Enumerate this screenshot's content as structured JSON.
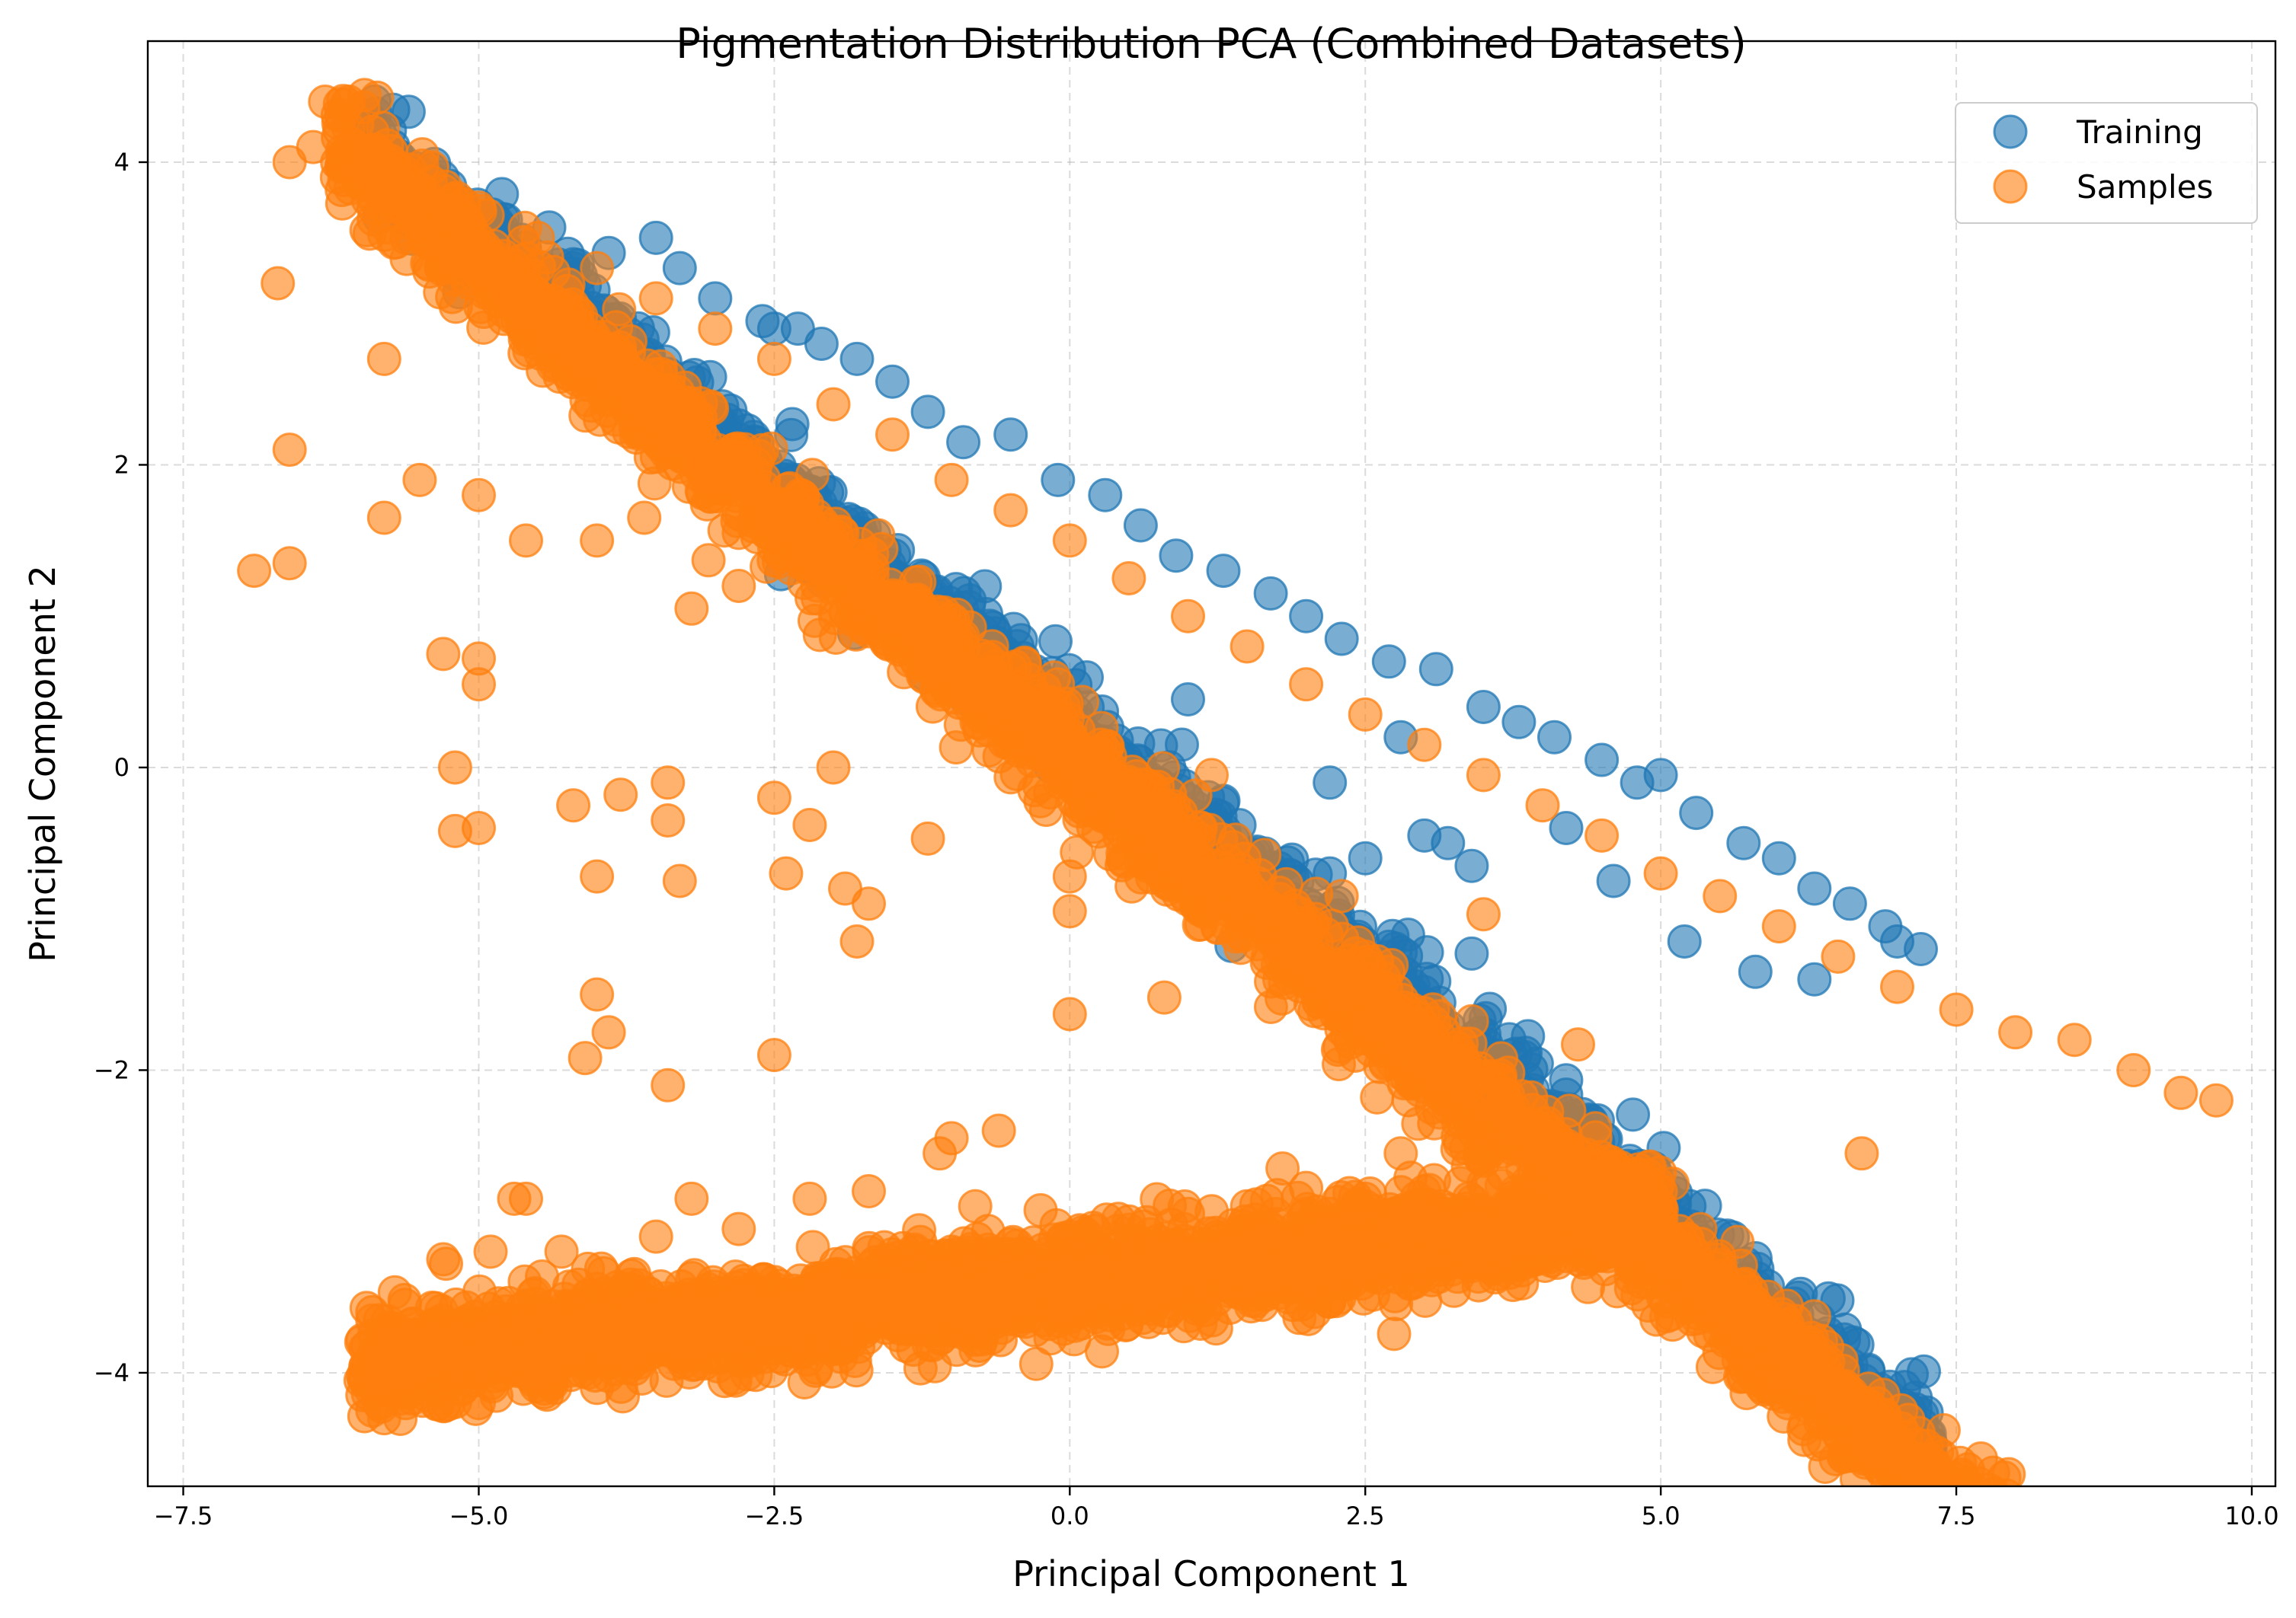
{
  "chart_data": {
    "type": "scatter",
    "title": "Pigmentation Distribution PCA (Combined Datasets)",
    "xlabel": "Principal Component 1",
    "ylabel": "Principal Component 2",
    "xlim": [
      -7.8,
      10.2
    ],
    "ylim": [
      -4.75,
      4.8
    ],
    "xticks": [
      -7.5,
      -5.0,
      -2.5,
      0.0,
      2.5,
      5.0,
      7.5,
      10.0
    ],
    "xtick_labels": [
      "−7.5",
      "−5.0",
      "−2.5",
      "0.0",
      "2.5",
      "5.0",
      "7.5",
      "10.0"
    ],
    "yticks": [
      -4,
      -2,
      0,
      2,
      4
    ],
    "ytick_labels": [
      "−4",
      "−2",
      "0",
      "2",
      "4"
    ],
    "grid": true,
    "legend_position": "top-right",
    "series": [
      {
        "name": "Training",
        "color": "#1f77b4",
        "opacity": 0.6,
        "points": [
          [
            -3.5,
            3.5
          ],
          [
            -3.3,
            3.3
          ],
          [
            -3.0,
            3.1
          ],
          [
            -2.6,
            2.95
          ],
          [
            -2.5,
            2.9
          ],
          [
            -2.3,
            2.9
          ],
          [
            -2.1,
            2.8
          ],
          [
            -1.8,
            2.7
          ],
          [
            -1.5,
            2.55
          ],
          [
            -1.2,
            2.35
          ],
          [
            -0.9,
            2.15
          ],
          [
            -0.5,
            2.2
          ],
          [
            -0.1,
            1.9
          ],
          [
            0.3,
            1.8
          ],
          [
            0.6,
            1.6
          ],
          [
            0.9,
            1.4
          ],
          [
            1.3,
            1.3
          ],
          [
            1.7,
            1.15
          ],
          [
            2.0,
            1.0
          ],
          [
            2.3,
            0.85
          ],
          [
            2.7,
            0.7
          ],
          [
            3.1,
            0.65
          ],
          [
            3.5,
            0.4
          ],
          [
            3.8,
            0.3
          ],
          [
            4.1,
            0.2
          ],
          [
            4.5,
            0.05
          ],
          [
            4.8,
            -0.1
          ],
          [
            5.0,
            -0.05
          ],
          [
            5.3,
            -0.3
          ],
          [
            5.7,
            -0.5
          ],
          [
            6.0,
            -0.6
          ],
          [
            6.3,
            -0.8
          ],
          [
            6.6,
            -0.9
          ],
          [
            6.9,
            -1.05
          ],
          [
            7.2,
            -1.2
          ],
          [
            -3.9,
            3.4
          ],
          [
            -4.2,
            3.3
          ],
          [
            -2.8,
            1.95
          ],
          [
            -0.8,
            0.8
          ],
          [
            1.0,
            0.45
          ],
          [
            1.3,
            -0.22
          ],
          [
            1.7,
            -0.8
          ],
          [
            2.2,
            -0.1
          ],
          [
            2.2,
            -0.7
          ],
          [
            2.5,
            -0.6
          ],
          [
            3.0,
            -0.45
          ],
          [
            3.4,
            -0.65
          ],
          [
            3.4,
            -1.23
          ],
          [
            3.2,
            -0.5
          ],
          [
            4.2,
            -0.4
          ],
          [
            4.6,
            -0.75
          ],
          [
            5.2,
            -1.15
          ],
          [
            5.8,
            -1.35
          ],
          [
            6.3,
            -1.4
          ],
          [
            7.0,
            -1.15
          ],
          [
            2.8,
            0.2
          ]
        ]
      },
      {
        "name": "Samples",
        "color": "#ff7f0e",
        "opacity": 0.6,
        "points": [
          [
            -6.3,
            4.4
          ],
          [
            -6.1,
            4.4
          ],
          [
            -6.4,
            4.1
          ],
          [
            -6.6,
            4.0
          ],
          [
            -6.2,
            3.9
          ],
          [
            -5.9,
            4.0
          ],
          [
            -5.5,
            3.8
          ],
          [
            -5.0,
            3.7
          ],
          [
            -4.5,
            3.5
          ],
          [
            -4.0,
            3.3
          ],
          [
            -3.5,
            3.1
          ],
          [
            -3.0,
            2.9
          ],
          [
            -2.5,
            2.7
          ],
          [
            -2.0,
            2.4
          ],
          [
            -1.5,
            2.2
          ],
          [
            -1.0,
            1.9
          ],
          [
            -0.5,
            1.7
          ],
          [
            0.0,
            1.5
          ],
          [
            0.5,
            1.25
          ],
          [
            1.0,
            1.0
          ],
          [
            1.5,
            0.8
          ],
          [
            2.0,
            0.55
          ],
          [
            2.5,
            0.35
          ],
          [
            3.0,
            0.15
          ],
          [
            3.5,
            -0.05
          ],
          [
            4.0,
            -0.25
          ],
          [
            4.5,
            -0.45
          ],
          [
            5.0,
            -0.7
          ],
          [
            5.5,
            -0.85
          ],
          [
            6.0,
            -1.05
          ],
          [
            6.5,
            -1.25
          ],
          [
            7.0,
            -1.45
          ],
          [
            7.5,
            -1.6
          ],
          [
            8.0,
            -1.75
          ],
          [
            8.5,
            -1.8
          ],
          [
            9.0,
            -2.0
          ],
          [
            9.7,
            -2.2
          ],
          [
            9.4,
            -2.15
          ],
          [
            -6.7,
            3.2
          ],
          [
            -5.8,
            2.7
          ],
          [
            -6.6,
            2.1
          ],
          [
            -6.9,
            1.3
          ],
          [
            -6.6,
            1.35
          ],
          [
            -5.8,
            1.65
          ],
          [
            -5.5,
            1.9
          ],
          [
            -5.0,
            1.8
          ],
          [
            -4.6,
            1.5
          ],
          [
            -4.0,
            1.5
          ],
          [
            -3.6,
            1.65
          ],
          [
            -3.2,
            1.05
          ],
          [
            -2.8,
            1.55
          ],
          [
            -2.8,
            1.2
          ],
          [
            -2.5,
            1.45
          ],
          [
            -1.7,
            0.9
          ],
          [
            -1.3,
            1.1
          ],
          [
            -1.0,
            0.75
          ],
          [
            -0.5,
            0.65
          ],
          [
            -0.1,
            0.55
          ],
          [
            -0.1,
            0.3
          ],
          [
            -5.3,
            0.75
          ],
          [
            -5.0,
            0.72
          ],
          [
            -5.0,
            0.55
          ],
          [
            -5.2,
            0.0
          ],
          [
            -5.2,
            -0.42
          ],
          [
            -5.0,
            -0.4
          ],
          [
            -4.2,
            -0.25
          ],
          [
            -3.8,
            -0.18
          ],
          [
            -3.4,
            -0.1
          ],
          [
            -3.4,
            -0.35
          ],
          [
            -3.3,
            -0.75
          ],
          [
            -4.0,
            -0.72
          ],
          [
            -4.0,
            -1.5
          ],
          [
            -3.9,
            -1.75
          ],
          [
            -4.1,
            -1.92
          ],
          [
            -3.4,
            -2.1
          ],
          [
            -2.5,
            -0.2
          ],
          [
            -2.2,
            -0.38
          ],
          [
            -2.4,
            -0.7
          ],
          [
            -2.0,
            0.0
          ],
          [
            -1.9,
            -0.8
          ],
          [
            -1.7,
            -0.9
          ],
          [
            -1.8,
            -1.15
          ],
          [
            -1.2,
            -0.47
          ],
          [
            -0.3,
            -0.15
          ],
          [
            -0.2,
            -0.28
          ],
          [
            0.0,
            -0.72
          ],
          [
            0.0,
            -0.95
          ],
          [
            0.0,
            -1.63
          ],
          [
            0.3,
            -0.3
          ],
          [
            0.8,
            -0.68
          ],
          [
            0.8,
            -1.52
          ],
          [
            1.1,
            -0.4
          ],
          [
            1.2,
            -0.05
          ],
          [
            1.8,
            -1.12
          ],
          [
            2.3,
            -0.85
          ],
          [
            2.5,
            -1.25
          ],
          [
            2.6,
            -1.28
          ],
          [
            2.6,
            -2.18
          ],
          [
            4.3,
            -1.83
          ],
          [
            3.5,
            -0.97
          ],
          [
            -2.5,
            -1.9
          ],
          [
            -1.1,
            -2.55
          ],
          [
            -1.0,
            -2.45
          ],
          [
            -0.6,
            -2.4
          ],
          [
            -4.7,
            -2.85
          ],
          [
            -4.6,
            -2.85
          ],
          [
            -3.2,
            -2.85
          ],
          [
            -2.2,
            -2.85
          ],
          [
            1.8,
            -2.65
          ],
          [
            2.8,
            -2.55
          ],
          [
            6.7,
            -2.55
          ],
          [
            4.2,
            -2.65
          ],
          [
            -5.9,
            -4.25
          ],
          [
            -5.7,
            -4.0
          ],
          [
            -5.5,
            -3.9
          ],
          [
            -5.0,
            -3.8
          ],
          [
            -4.5,
            -3.7
          ],
          [
            -4.0,
            -3.65
          ],
          [
            -3.5,
            -3.55
          ],
          [
            -3.0,
            -3.5
          ],
          [
            -2.5,
            -3.4
          ],
          [
            -2.0,
            -3.35
          ],
          [
            -1.5,
            -3.3
          ],
          [
            -1.0,
            -3.2
          ],
          [
            -0.5,
            -3.15
          ],
          [
            0.0,
            -3.1
          ],
          [
            0.5,
            -3.0
          ],
          [
            1.0,
            -2.95
          ],
          [
            1.5,
            -2.9
          ],
          [
            2.0,
            -2.95
          ],
          [
            2.5,
            -2.85
          ],
          [
            3.0,
            -2.8
          ],
          [
            3.5,
            -2.75
          ],
          [
            4.0,
            -2.7
          ],
          [
            4.5,
            -2.75
          ],
          [
            5.0,
            -2.8
          ],
          [
            5.1,
            -2.75
          ],
          [
            -6.0,
            -4.05
          ],
          [
            -5.9,
            -3.6
          ],
          [
            -5.3,
            -3.25
          ],
          [
            -4.9,
            -3.2
          ],
          [
            -4.3,
            -3.2
          ],
          [
            -3.5,
            -3.1
          ],
          [
            -2.8,
            -3.05
          ],
          [
            -5.8,
            -4.3
          ],
          [
            -5.0,
            -4.2
          ],
          [
            -4.0,
            -4.1
          ],
          [
            -3.0,
            -3.9
          ],
          [
            -2.0,
            -3.8
          ],
          [
            -1.0,
            -3.7
          ],
          [
            0.0,
            -3.5
          ],
          [
            1.0,
            -3.5
          ],
          [
            2.0,
            -3.35
          ],
          [
            3.0,
            -3.2
          ],
          [
            4.0,
            -3.05
          ],
          [
            4.8,
            -2.95
          ],
          [
            -1.7,
            -2.8
          ],
          [
            -0.8,
            -2.9
          ],
          [
            0.9,
            -3.55
          ],
          [
            2.3,
            -3.3
          ]
        ]
      }
    ],
    "dense_bands": [
      {
        "series": "Training",
        "count": 1100,
        "x_range": [
          -6.0,
          7.3
        ],
        "intercept": 0.1,
        "slope": -0.645,
        "half_width": 0.32,
        "y_offset": 0.18
      },
      {
        "series": "Samples",
        "count": 2600,
        "x_range": [
          -6.2,
          8.8
        ],
        "intercept": 0.05,
        "slope": -0.655,
        "half_width": 0.32,
        "y_offset": 0.0
      },
      {
        "series": "Samples",
        "count": 2400,
        "x_range": [
          -6.0,
          5.0
        ],
        "intercept": -3.4,
        "slope": 0.09,
        "half_width": 0.3,
        "y_offset": 0.0
      }
    ]
  }
}
